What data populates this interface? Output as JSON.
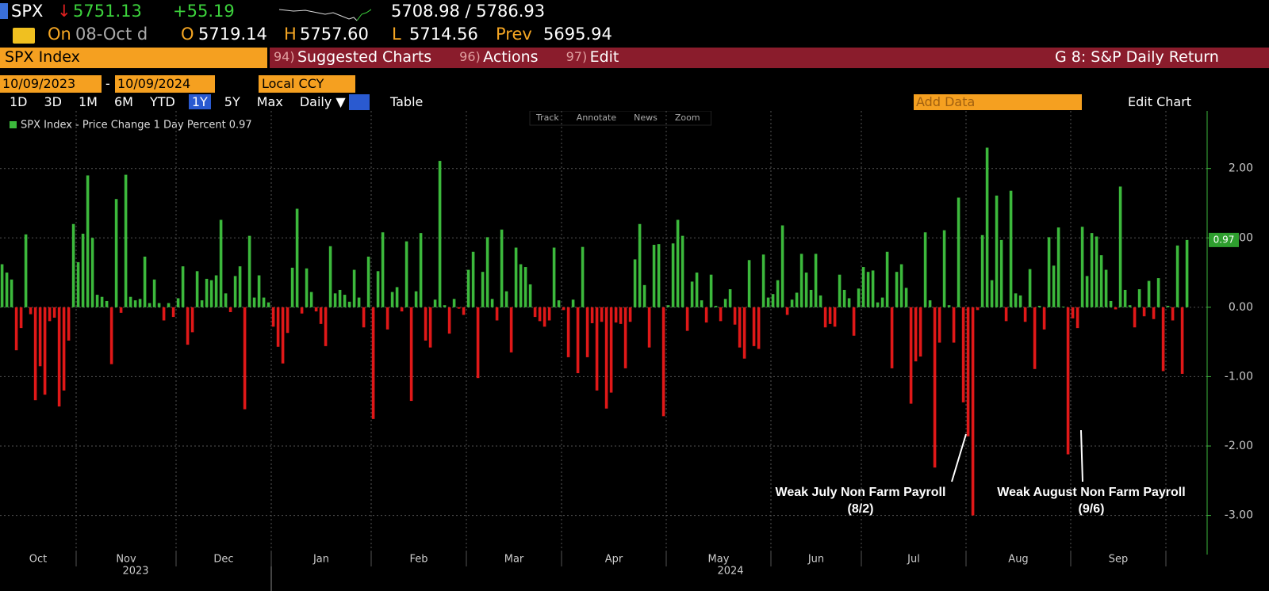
{
  "header": {
    "ticker": "SPX",
    "arrow": "↓",
    "last": "5751.13",
    "change": "+55.19",
    "range": "5708.98 / 5786.93",
    "on": "On",
    "date": "08-Oct d",
    "open_label": "O",
    "open": "5719.14",
    "high_label": "H",
    "high": "5757.60",
    "low_label": "L",
    "low": "5714.56",
    "prev_label": "Prev",
    "prev": "5695.94"
  },
  "menu": {
    "security": "SPX Index",
    "items": [
      {
        "num": "94)",
        "label": "Suggested Charts"
      },
      {
        "num": "96)",
        "label": "Actions"
      },
      {
        "num": "97)",
        "label": "Edit"
      }
    ],
    "chart_name": "G 8: S&P Daily Return"
  },
  "range_bar": {
    "start": "10/09/2023",
    "dash": "-",
    "end": "10/09/2024",
    "currency": "Local CCY"
  },
  "toolbar": {
    "periods": [
      "1D",
      "3D",
      "1M",
      "6M",
      "YTD",
      "1Y",
      "5Y",
      "Max"
    ],
    "frequency": "Daily ▼",
    "table": "Table",
    "add_data": "Add Data",
    "edit_chart": "Edit Chart"
  },
  "chart_tools": [
    "Track",
    "Annotate",
    "News",
    "Zoom"
  ],
  "chart_data": {
    "type": "bar",
    "series": [
      {
        "name": "SPX Index - Price Change 1 Day Percent",
        "color_up": "#3cb93c",
        "color_down": "#e01818",
        "values": [
          0.62,
          0.5,
          0.4,
          -0.62,
          -0.3,
          1.05,
          -0.1,
          -1.34,
          -0.85,
          -1.26,
          -0.2,
          -0.15,
          -1.43,
          -1.2,
          -0.48,
          1.2,
          0.65,
          1.06,
          1.9,
          1.0,
          0.18,
          0.15,
          0.09,
          -0.82,
          1.56,
          -0.08,
          1.91,
          0.15,
          0.1,
          0.12,
          0.73,
          0.06,
          0.4,
          0.06,
          -0.19,
          0.06,
          -0.14,
          0.13,
          0.59,
          -0.54,
          -0.36,
          0.52,
          0.1,
          0.41,
          0.39,
          0.46,
          1.26,
          0.2,
          -0.07,
          0.45,
          0.59,
          -1.47,
          1.03,
          0.14,
          0.46,
          0.14,
          0.07,
          -0.28,
          -0.57,
          -0.81,
          -0.37,
          0.57,
          1.42,
          -0.09,
          0.56,
          0.22,
          -0.06,
          -0.24,
          -0.56,
          0.88,
          0.2,
          0.25,
          0.18,
          0.08,
          0.54,
          0.14,
          -0.29,
          0.73,
          -1.61,
          0.52,
          1.08,
          -0.32,
          0.22,
          0.29,
          -0.06,
          0.95,
          -1.35,
          0.23,
          1.07,
          -0.48,
          -0.58,
          0.11,
          2.11,
          0.03,
          -0.38,
          0.12,
          -0.02,
          -0.11,
          0.54,
          0.8,
          -1.02,
          0.51,
          1.01,
          0.12,
          -0.19,
          1.12,
          0.23,
          -0.65,
          0.86,
          0.62,
          0.58,
          0.33,
          -0.14,
          -0.2,
          -0.28,
          -0.19,
          0.86,
          0.1,
          -0.04,
          -0.72,
          0.11,
          -0.95,
          0.87,
          -0.72,
          -0.23,
          -1.2,
          -0.21,
          -1.46,
          -1.23,
          -0.22,
          -0.24,
          -0.88,
          -0.21,
          0.69,
          1.2,
          0.32,
          -0.58,
          0.9,
          0.91,
          -1.57,
          0.03,
          0.92,
          1.26,
          1.03,
          -0.34,
          0.37,
          0.5,
          0.1,
          -0.22,
          0.47,
          0.02,
          -0.2,
          0.12,
          0.26,
          -0.25,
          -0.58,
          -0.74,
          0.68,
          -0.56,
          -0.6,
          0.76,
          0.14,
          0.19,
          0.39,
          1.18,
          -0.11,
          0.11,
          0.21,
          0.77,
          0.5,
          0.25,
          0.77,
          0.17,
          -0.29,
          -0.24,
          -0.28,
          0.47,
          0.25,
          0.13,
          -0.41,
          0.27,
          0.58,
          0.51,
          0.53,
          0.07,
          0.14,
          0.8,
          -0.88,
          0.51,
          0.62,
          0.28,
          -1.39,
          -0.78,
          -0.71,
          1.08,
          0.1,
          -2.31,
          -0.51,
          1.11,
          0.03,
          -0.51,
          1.58,
          -1.37,
          -1.86,
          -3.0,
          -0.04,
          1.04,
          2.3,
          0.39,
          1.61,
          0.97,
          -0.2,
          1.68,
          0.2,
          0.17,
          -0.21,
          0.55,
          -0.89,
          0.02,
          -0.32,
          1.01,
          0.6,
          1.15,
          0.01,
          -2.12,
          -0.16,
          -0.3,
          1.16,
          0.45,
          1.07,
          1.02,
          0.75,
          0.54,
          0.09,
          -0.03,
          1.74,
          0.25,
          0.03,
          -0.29,
          0.26,
          -0.13,
          0.38,
          -0.17,
          0.42,
          -0.92,
          0.02,
          -0.19,
          0.89,
          -0.96,
          0.97
        ]
      }
    ],
    "ylim": [
      -3.53,
      2.83
    ],
    "yticks": [
      {
        "value": 2,
        "label": "2.00"
      },
      {
        "value": 1,
        "label": "1.00"
      },
      {
        "value": 0,
        "label": "0.00"
      },
      {
        "value": -1,
        "label": "-1.00"
      },
      {
        "value": -2,
        "label": "-2.00"
      },
      {
        "value": -3,
        "label": "-3.00"
      }
    ],
    "xticks": [
      {
        "value": 0,
        "label": "Oct"
      },
      {
        "value": 16,
        "label": "Nov"
      },
      {
        "value": 37,
        "label": "Dec"
      },
      {
        "value": 57,
        "label": "Jan"
      },
      {
        "value": 78,
        "label": "Feb"
      },
      {
        "value": 98,
        "label": "Mar"
      },
      {
        "value": 118,
        "label": "Apr"
      },
      {
        "value": 140,
        "label": "May"
      },
      {
        "value": 162,
        "label": "Jun"
      },
      {
        "value": 181,
        "label": "Jul"
      },
      {
        "value": 203,
        "label": "Aug"
      },
      {
        "value": 225,
        "label": "Sep"
      },
      {
        "value": 245,
        "label": ""
      }
    ],
    "years": [
      {
        "value": 0,
        "label": "2023"
      },
      {
        "value": 57,
        "label": "2024"
      }
    ],
    "grid": true,
    "annotations": [
      {
        "lines": [
          "Weak July Non Farm Payroll",
          "(8/2)"
        ]
      },
      {
        "lines": [
          "Weak August Non Farm Payroll",
          "(9/6)"
        ]
      }
    ]
  }
}
